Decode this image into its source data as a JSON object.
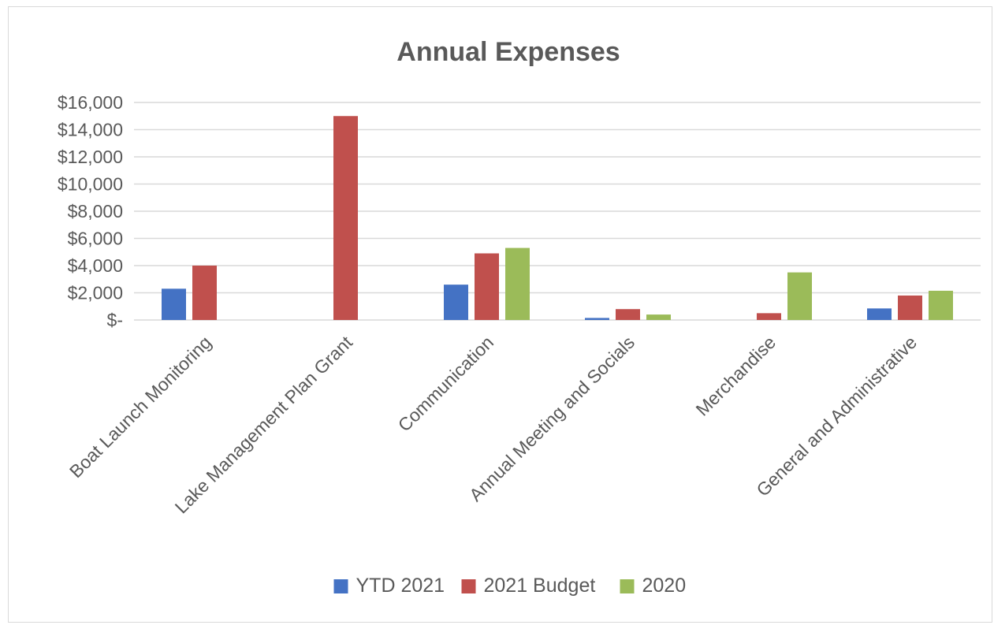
{
  "chart_data": {
    "type": "bar",
    "title": "Annual Expenses",
    "xlabel": "",
    "ylabel": "",
    "categories": [
      "Boat Launch Monitoring",
      "Lake Management Plan Grant",
      "Communication",
      "Annual Meeting and Socials",
      "Merchandise",
      "General and Administrative"
    ],
    "series": [
      {
        "name": "YTD 2021",
        "color": "#4472c4",
        "values": [
          2300,
          0,
          2600,
          150,
          0,
          850
        ]
      },
      {
        "name": "2021 Budget",
        "color": "#c0504d",
        "values": [
          4000,
          15000,
          4900,
          800,
          500,
          1800
        ]
      },
      {
        "name": "2020",
        "color": "#9bbb59",
        "values": [
          0,
          0,
          5300,
          400,
          3500,
          2150
        ]
      }
    ],
    "ylim": [
      0,
      16000
    ],
    "yticks": [
      0,
      2000,
      4000,
      6000,
      8000,
      10000,
      12000,
      14000,
      16000
    ],
    "ytick_labels": [
      "$-",
      "$2,000",
      "$4,000",
      "$6,000",
      "$8,000",
      "$10,000",
      "$12,000",
      "$14,000",
      "$16,000"
    ],
    "grid": true,
    "legend_position": "bottom"
  }
}
